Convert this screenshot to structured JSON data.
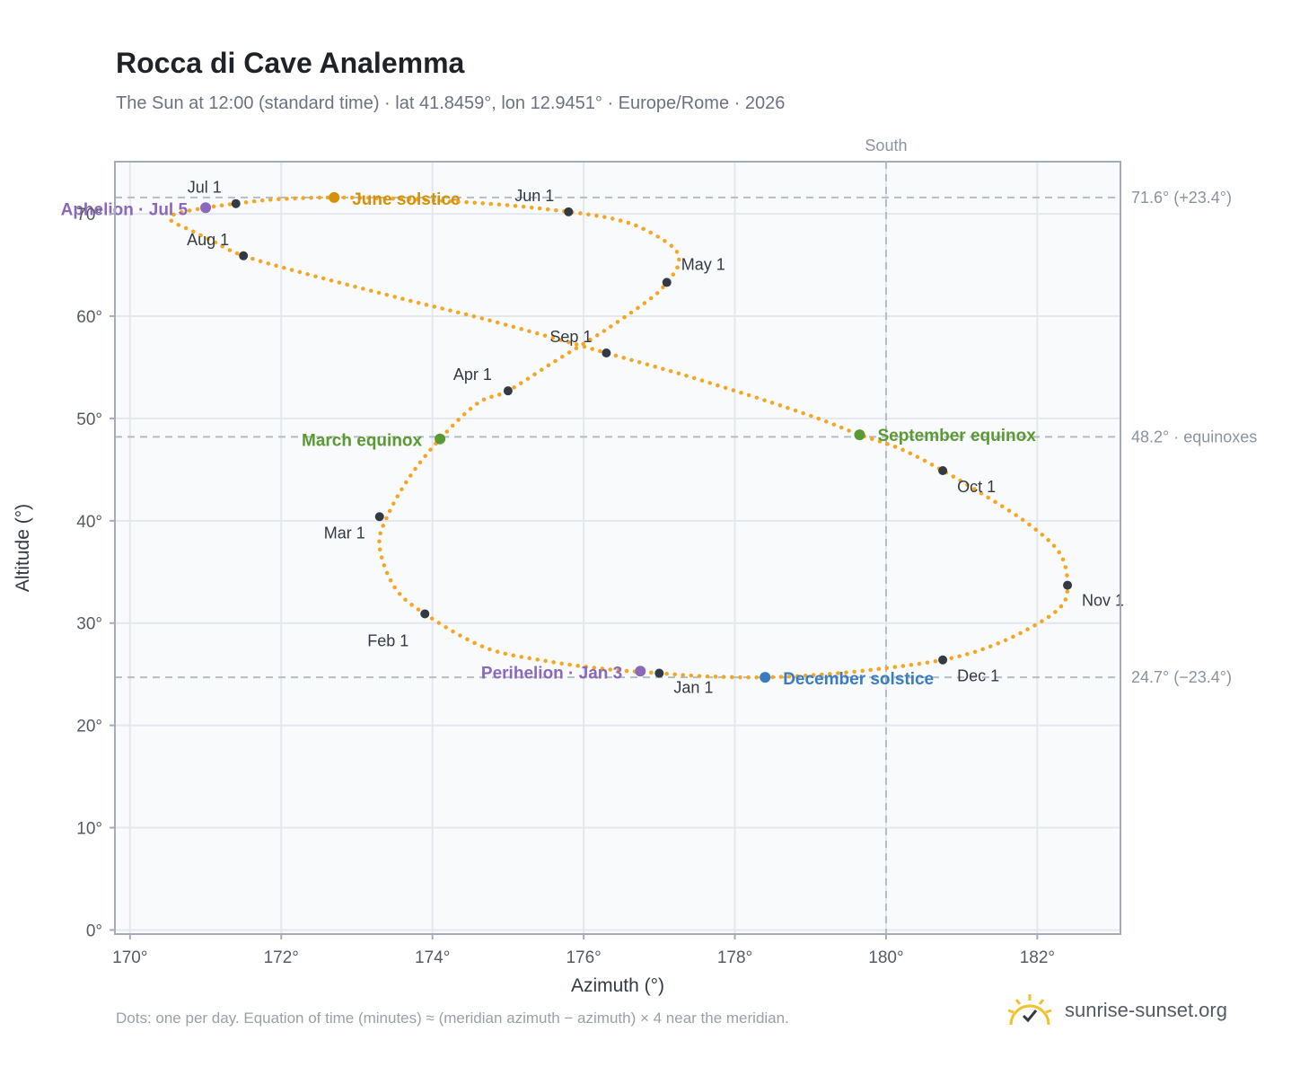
{
  "title": "Rocca di Cave Analemma",
  "subtitle": "The Sun at 12:00 (standard time) · lat 41.8459°, lon 12.9451° · Europe/Rome · 2026",
  "footnote": "Dots: one per day. Equation of time (minutes) ≈ (meridian azimuth − azimuth) × 4 near the meridian.",
  "brand": {
    "name": "sunrise-sunset.org",
    "icon": "sun-logo-icon"
  },
  "colors": {
    "curve": "#f5a623",
    "month_marker": "#333a44",
    "solstice_june": "#d4920a",
    "equinox": "#5a9a32",
    "solstice_december": "#3a7cc0",
    "aphelion_perihelion": "#8a68bb",
    "grid": "#e3e8ee",
    "plot_bg": "#f8fafc",
    "frame": "#a3adba"
  },
  "chart_data": {
    "type": "scatter",
    "xlabel": "Azimuth (°)",
    "ylabel": "Altitude (°)",
    "xlim": [
      169.8,
      183.1
    ],
    "ylim": [
      -0.4,
      75.1
    ],
    "xticks": [
      170,
      172,
      174,
      176,
      178,
      180,
      182
    ],
    "xtick_labels": [
      "170°",
      "172°",
      "174°",
      "176°",
      "178°",
      "180°",
      "182°"
    ],
    "yticks": [
      0,
      10,
      20,
      30,
      40,
      50,
      60,
      70
    ],
    "ytick_labels": [
      "0°",
      "10°",
      "20°",
      "30°",
      "40°",
      "50°",
      "60°",
      "70°"
    ],
    "grid": true,
    "meridian": {
      "azimuth": 180,
      "label": "South"
    },
    "reference_lines": [
      {
        "altitude": 71.6,
        "label": "71.6° (+23.4°)"
      },
      {
        "altitude": 48.2,
        "label": "48.2° · equinoxes"
      },
      {
        "altitude": 24.7,
        "label": "24.7° (−23.4°)"
      }
    ],
    "path_points": [
      [
        177.0,
        25.1
      ],
      [
        176.3,
        25.5
      ],
      [
        175.5,
        26.3
      ],
      [
        174.7,
        27.6
      ],
      [
        173.9,
        30.9
      ],
      [
        173.5,
        33.5
      ],
      [
        173.3,
        37.5
      ],
      [
        173.4,
        40.4
      ],
      [
        173.7,
        44.3
      ],
      [
        174.1,
        48.0
      ],
      [
        174.6,
        51.5
      ],
      [
        175.0,
        52.7
      ],
      [
        175.6,
        55.5
      ],
      [
        176.3,
        58.7
      ],
      [
        176.9,
        61.8
      ],
      [
        177.1,
        63.3
      ],
      [
        177.25,
        65.0
      ],
      [
        177.2,
        66.6
      ],
      [
        176.8,
        68.5
      ],
      [
        176.4,
        69.5
      ],
      [
        175.8,
        70.2
      ],
      [
        174.9,
        70.9
      ],
      [
        173.8,
        71.4
      ],
      [
        172.7,
        71.6
      ],
      [
        171.9,
        71.4
      ],
      [
        171.4,
        71.0
      ],
      [
        171.0,
        70.6
      ],
      [
        170.6,
        70.0
      ],
      [
        170.55,
        69.3
      ],
      [
        170.8,
        68.4
      ],
      [
        171.1,
        67.3
      ],
      [
        171.5,
        65.9
      ],
      [
        172.3,
        64.2
      ],
      [
        173.6,
        61.7
      ],
      [
        174.8,
        59.5
      ],
      [
        176.3,
        56.4
      ],
      [
        177.3,
        54.3
      ],
      [
        178.3,
        52.0
      ],
      [
        179.1,
        50.0
      ],
      [
        179.65,
        48.4
      ],
      [
        180.2,
        47.0
      ],
      [
        180.75,
        44.9
      ],
      [
        181.3,
        42.5
      ],
      [
        181.9,
        39.6
      ],
      [
        182.3,
        36.8
      ],
      [
        182.4,
        33.7
      ],
      [
        182.3,
        31.5
      ],
      [
        181.85,
        29.3
      ],
      [
        181.3,
        27.5
      ],
      [
        180.75,
        26.4
      ],
      [
        180.0,
        25.6
      ],
      [
        179.2,
        25.0
      ],
      [
        178.4,
        24.7
      ],
      [
        177.6,
        24.8
      ],
      [
        177.0,
        25.1
      ]
    ],
    "month_markers": [
      {
        "label": "Jan 1",
        "az": 177.0,
        "alt": 25.1
      },
      {
        "label": "Feb 1",
        "az": 173.9,
        "alt": 30.9
      },
      {
        "label": "Mar 1",
        "az": 173.3,
        "alt": 40.4
      },
      {
        "label": "Apr 1",
        "az": 175.0,
        "alt": 52.7
      },
      {
        "label": "May 1",
        "az": 177.1,
        "alt": 63.3
      },
      {
        "label": "Jun 1",
        "az": 175.8,
        "alt": 70.2
      },
      {
        "label": "Jul 1",
        "az": 171.4,
        "alt": 71.0
      },
      {
        "label": "Aug 1",
        "az": 171.5,
        "alt": 65.9
      },
      {
        "label": "Sep 1",
        "az": 176.3,
        "alt": 56.4
      },
      {
        "label": "Oct 1",
        "az": 180.75,
        "alt": 44.9
      },
      {
        "label": "Nov 1",
        "az": 182.4,
        "alt": 33.7
      },
      {
        "label": "Dec 1",
        "az": 180.75,
        "alt": 26.4
      }
    ],
    "events": [
      {
        "label": "June solstice",
        "az": 172.7,
        "alt": 71.6,
        "color": "#d4920a"
      },
      {
        "label": "Aphelion · Jul 5",
        "az": 171.0,
        "alt": 70.6,
        "color": "#8a68bb"
      },
      {
        "label": "March equinox",
        "az": 174.1,
        "alt": 48.0,
        "color": "#5a9a32"
      },
      {
        "label": "September equinox",
        "az": 179.65,
        "alt": 48.4,
        "color": "#5a9a32"
      },
      {
        "label": "Perihelion · Jan 3",
        "az": 176.75,
        "alt": 25.3,
        "color": "#8a68bb"
      },
      {
        "label": "December solstice",
        "az": 178.4,
        "alt": 24.7,
        "color": "#3a7cc0"
      }
    ]
  }
}
